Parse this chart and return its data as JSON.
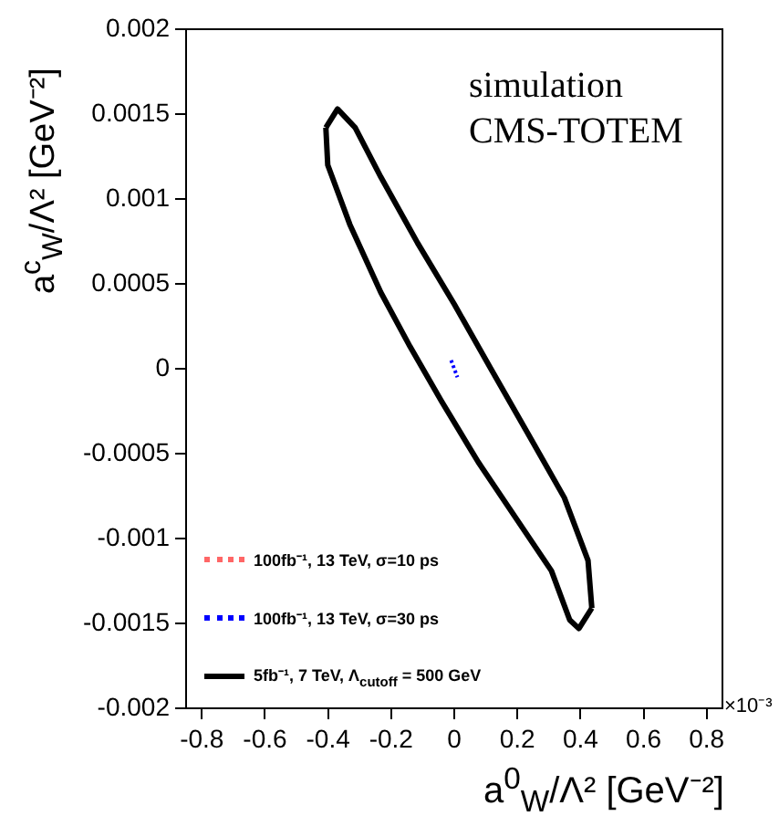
{
  "chart_data": {
    "type": "line",
    "xlabel": "a$^{0}$$_{W}$/Λ² [GeV⁻²]",
    "ylabel": "a$^{c}$$_{W}$/Λ² [GeV⁻²]",
    "annotations": [
      "simulation",
      "CMS-TOTEM",
      "×10⁻³"
    ],
    "xlim": [
      -0.85,
      0.85
    ],
    "xticks": [
      -0.8,
      -0.6,
      -0.4,
      -0.2,
      0,
      0.2,
      0.4,
      0.6,
      0.8
    ],
    "ylim": [
      -0.002,
      0.002
    ],
    "yticks": [
      -0.002,
      -0.0015,
      -0.001,
      -0.0005,
      0,
      0.0005,
      0.001,
      0.0015,
      0.002
    ],
    "grid": false,
    "legend": "bottom left",
    "marker": "none",
    "series": [
      {
        "name": "100fb⁻¹, 13 TeV, σ=10 ps",
        "color": "#ff6666",
        "line_style": "dotted"
      },
      {
        "name": "100fb⁻¹, 13 TeV, σ=30 ps",
        "color": "#0000ff",
        "line_style": "dotted",
        "x": [
          -0.01,
          0.01
        ],
        "values": [
          5e-05,
          -5e-05
        ]
      },
      {
        "name": "5fb⁻¹, 7 TeV, Λ$_{cutoff}$ = 500 GeV",
        "color": "#000000",
        "line_style": "solid",
        "x": [
          -0.407,
          -0.37,
          -0.314,
          -0.233,
          -0.116,
          0,
          0.116,
          0.233,
          0.349,
          0.424,
          0.436
        ],
        "values": [
          0.00142,
          0.00153,
          0.00142,
          0.00113,
          0.00074,
          0.00038,
          0,
          -0.00038,
          -0.00076,
          -0.00113,
          -0.00141
        ]
      },
      {
        "color": "#000000",
        "line_style": "solid",
        "x": [
          -0.407,
          -0.401,
          -0.331,
          -0.233,
          -0.14,
          -0.041,
          0.076,
          0.192,
          0.308,
          0.366,
          0.395,
          0.436
        ],
        "values": [
          0.00142,
          0.0012,
          0.00085,
          0.00045,
          0.00013,
          -0.00019,
          -0.00055,
          -0.00087,
          -0.00119,
          -0.00148,
          -0.00153,
          -0.00141
        ]
      }
    ]
  }
}
